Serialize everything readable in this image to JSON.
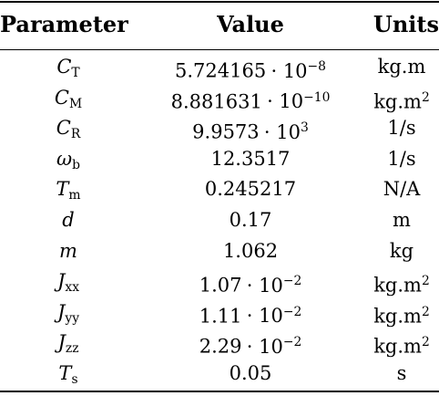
{
  "table": {
    "headers": {
      "parameter": "Parameter",
      "value": "Value",
      "units": "Units"
    },
    "rows": [
      {
        "symbol": "C",
        "subscript": "T",
        "mantissa": "5.724165",
        "exponent": "−8",
        "unit": "kg.m",
        "unit_exp": ""
      },
      {
        "symbol": "C",
        "subscript": "M",
        "mantissa": "8.881631",
        "exponent": "−10",
        "unit": "kg.m",
        "unit_exp": "2"
      },
      {
        "symbol": "C",
        "subscript": "R",
        "mantissa": "9.9573",
        "exponent": "3",
        "unit": "1/s",
        "unit_exp": ""
      },
      {
        "symbol": "ω",
        "subscript": "b",
        "mantissa": "12.3517",
        "exponent": "",
        "unit": "1/s",
        "unit_exp": ""
      },
      {
        "symbol": "T",
        "subscript": "m",
        "mantissa": "0.245217",
        "exponent": "",
        "unit": "N/A",
        "unit_exp": ""
      },
      {
        "symbol": "d",
        "subscript": "",
        "mantissa": "0.17",
        "exponent": "",
        "unit": "m",
        "unit_exp": ""
      },
      {
        "symbol": "m",
        "subscript": "",
        "mantissa": "1.062",
        "exponent": "",
        "unit": "kg",
        "unit_exp": ""
      },
      {
        "symbol": "J",
        "subscript": "xx",
        "mantissa": "1.07",
        "exponent": "−2",
        "unit": "kg.m",
        "unit_exp": "2"
      },
      {
        "symbol": "J",
        "subscript": "yy",
        "mantissa": "1.11",
        "exponent": "−2",
        "unit": "kg.m",
        "unit_exp": "2"
      },
      {
        "symbol": "J",
        "subscript": "zz",
        "mantissa": "2.29",
        "exponent": "−2",
        "unit": "kg.m",
        "unit_exp": "2"
      },
      {
        "symbol": "T",
        "subscript": "s",
        "mantissa": "0.05",
        "exponent": "",
        "unit": "s",
        "unit_exp": ""
      }
    ],
    "multiplier": "· 10"
  }
}
